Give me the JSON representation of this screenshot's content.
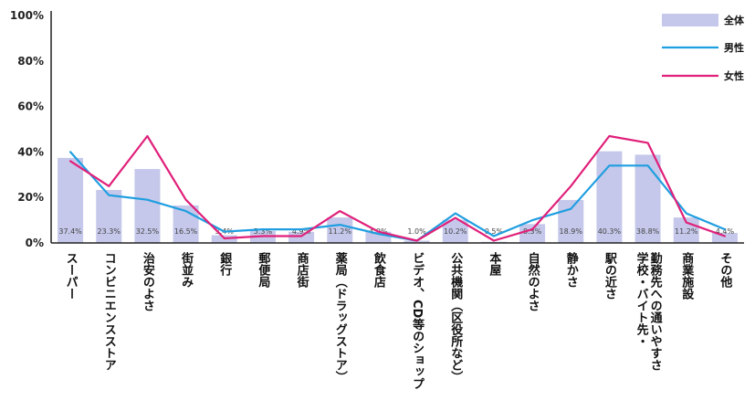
{
  "chart_data": {
    "type": "bar",
    "categories": [
      "スーパー",
      "コンビニエンスストア",
      "治安のよさ",
      "街並み",
      "銀行",
      "郵便局",
      "商店街",
      "薬局（ドラッグストア）",
      "飲食店",
      "ビデオ、CD等のショップ",
      "公共機関（区役所など）",
      "本屋",
      "自然のよさ",
      "静かさ",
      "駅の近さ",
      "学校・バイト先・勤務先への通いやすさ",
      "商業施設",
      "その他"
    ],
    "category_lines": [
      [
        "スーパー"
      ],
      [
        "コンビニエンスストア"
      ],
      [
        "治安のよさ"
      ],
      [
        "街並み"
      ],
      [
        "銀行"
      ],
      [
        "郵便局"
      ],
      [
        "商店街"
      ],
      [
        "薬局（ドラッグストア）"
      ],
      [
        "飲食店"
      ],
      [
        "ビデオ、CD等のショップ"
      ],
      [
        "公共機関（区役所など）"
      ],
      [
        "本屋"
      ],
      [
        "自然のよさ"
      ],
      [
        "静かさ"
      ],
      [
        "駅の近さ"
      ],
      [
        "学校・バイト先・",
        "勤務先への通いやすさ"
      ],
      [
        "商業施設"
      ],
      [
        "その他"
      ]
    ],
    "series": [
      {
        "name": "全体",
        "kind": "bar",
        "color": "#c5c8ea",
        "values": [
          37.4,
          23.3,
          32.5,
          16.5,
          3.4,
          5.3,
          4.9,
          11.2,
          4.9,
          1.0,
          10.2,
          0.5,
          8.3,
          18.9,
          40.3,
          38.8,
          11.2,
          4.4
        ]
      },
      {
        "name": "男性",
        "kind": "line",
        "color": "#1f9ee0",
        "values": [
          40,
          21,
          19,
          14,
          5,
          6,
          6,
          8,
          4,
          1,
          13,
          3,
          10,
          15,
          34,
          34,
          13,
          6
        ]
      },
      {
        "name": "女性",
        "kind": "line",
        "color": "#e0207a",
        "values": [
          36,
          25,
          47,
          19,
          2,
          3,
          3,
          14,
          5,
          1,
          11,
          1,
          6,
          25,
          47,
          44,
          9,
          3
        ]
      }
    ],
    "data_labels": [
      "37.4%",
      "23.3%",
      "32.5%",
      "16.5%",
      "3.4%",
      "5.3%",
      "4.9%",
      "11.2%",
      "4.9%",
      "1.0%",
      "10.2%",
      "0.5%",
      "8.3%",
      "18.9%",
      "40.3%",
      "38.8%",
      "11.2%",
      "4.4%"
    ],
    "yticks": [
      "0%",
      "20%",
      "40%",
      "60%",
      "80%",
      "100%"
    ],
    "ylim": [
      0,
      100
    ],
    "legend_position": "top-right",
    "grid": false,
    "title": "",
    "xlabel": "",
    "ylabel": ""
  }
}
